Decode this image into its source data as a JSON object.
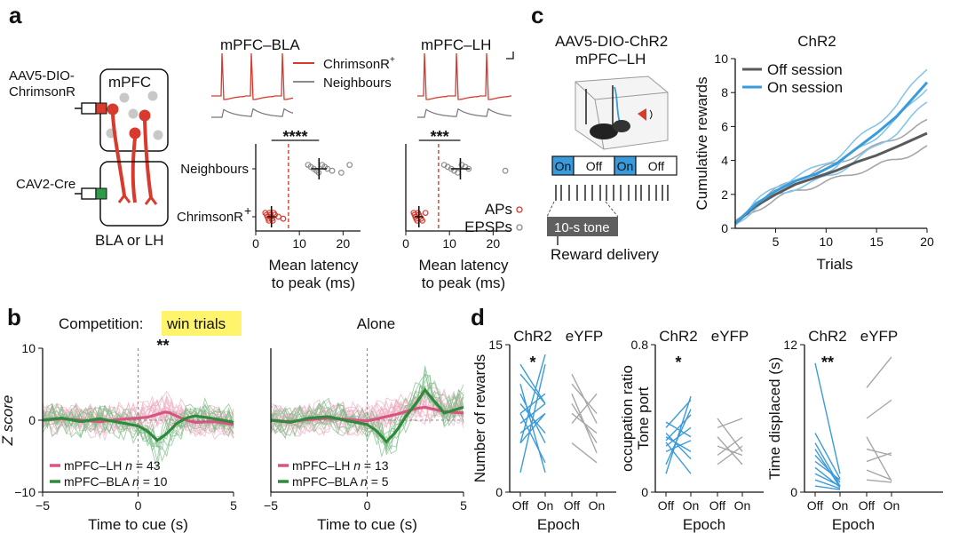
{
  "panel_letters": [
    "a",
    "b",
    "c",
    "d"
  ],
  "colors": {
    "red": "#d83a2e",
    "grey": "#8c8c8c",
    "pink": "#d9557f",
    "pink_light": "#eeb2c4",
    "green": "#2f8a3d",
    "green_light": "#7cbf88",
    "blue": "#3a9bdc",
    "blue_light": "#86c5ea",
    "dark_grey": "#5a5a5a",
    "light_grey": "#a6a6a6",
    "highlight": "#fff46b"
  },
  "panel_a": {
    "virus_label": [
      "AAV5-DIO-",
      "ChrimsonR"
    ],
    "cre_label": "CAV2-Cre",
    "mpfc_label": "mPFC",
    "target_label": "BLA or LH",
    "trace_titles": [
      "mPFC–BLA",
      "mPFC–LH"
    ],
    "trace_legend": [
      "ChrimsonR",
      "+",
      "Neighbours"
    ],
    "icon_names": [
      "syringe-icon",
      "neuron-icon"
    ]
  },
  "panel_c_left": {
    "title": [
      "AAV5-DIO-ChR2",
      "mPFC–LH"
    ],
    "epochs": [
      "On",
      "Off",
      "On",
      "Off"
    ],
    "tone_label": "10-s tone",
    "reward_label": "Reward delivery",
    "icon_names": [
      "behavior-box-icon",
      "speaker-icon",
      "mouse-icon"
    ]
  },
  "chart_data": [
    {
      "id": "a-latency-BLA",
      "type": "scatter",
      "categories": [
        "Neighbours",
        "ChrimsonR+"
      ],
      "cat_tick_labels": [
        "Neighbours",
        "ChrimsonR",
        "+"
      ],
      "xlabel": [
        "Mean latency",
        "to peak (ms)"
      ],
      "xticks": [
        0,
        10,
        20
      ],
      "xlim": [
        0,
        24
      ],
      "threshold": 7.5,
      "significance": "****",
      "series": [
        {
          "name": "ChrimsonR+",
          "values": [
            2.2,
            2.5,
            2.7,
            2.9,
            3.0,
            3.2,
            3.4,
            3.5,
            3.7,
            3.9,
            4.1,
            4.4,
            5.2,
            6.3
          ],
          "mean": 3.6,
          "sem": 1.0
        },
        {
          "name": "Neighbours",
          "values": [
            12.0,
            12.6,
            13.3,
            13.9,
            14.4,
            15.2,
            15.8,
            16.4,
            17.5,
            19.6,
            21.5
          ],
          "mean": 14.5,
          "sem": 1.8
        }
      ]
    },
    {
      "id": "a-latency-LH",
      "type": "scatter",
      "categories": [
        "Neighbours",
        "ChrimsonR+"
      ],
      "xlabel": [
        "Mean latency",
        "to peak (ms)"
      ],
      "xticks": [
        0,
        10,
        20
      ],
      "xlim": [
        0,
        24
      ],
      "threshold": 7.5,
      "significance": "***",
      "legend": [
        "APs",
        "EPSPs"
      ],
      "series": [
        {
          "name": "APs",
          "values": [
            1.8,
            2.0,
            2.2,
            2.4,
            2.6,
            2.8,
            3.0,
            3.2,
            3.5,
            3.8,
            4.5
          ],
          "mean": 3.0,
          "sem": 1.0
        },
        {
          "name": "EPSPs",
          "values": [
            8.8,
            9.6,
            10.4,
            11.1,
            11.9,
            12.8,
            13.6,
            14.4,
            22.8
          ],
          "mean": 12.5,
          "sem": 2.2
        }
      ]
    },
    {
      "id": "b-competition",
      "type": "line",
      "title": "Competition:",
      "title_highlight": "win trials",
      "significance": "**",
      "xlabel": "Time to cue (s)",
      "ylabel": "Z score",
      "xlim": [
        -5,
        5
      ],
      "ylim": [
        -10,
        10
      ],
      "xticks": [
        -5,
        0,
        5
      ],
      "yticks": [
        -10,
        0,
        10
      ],
      "legend": [
        {
          "name": "mPFC–LH",
          "n_label": "n",
          "n_value": "43"
        },
        {
          "name": "mPFC–BLA",
          "n_label": "n",
          "n_value": "10"
        }
      ],
      "series": [
        {
          "name": "mPFC–LH",
          "x": [
            -5,
            -4,
            -3,
            -2,
            -1,
            0,
            0.5,
            1,
            1.5,
            2,
            2.5,
            3,
            4,
            5
          ],
          "values": [
            0.0,
            0.2,
            0.0,
            -0.2,
            0.1,
            0.3,
            0.4,
            0.8,
            1.2,
            0.6,
            0.0,
            -0.3,
            -0.2,
            -0.6
          ]
        },
        {
          "name": "mPFC–BLA",
          "x": [
            -5,
            -4,
            -3,
            -2,
            -1,
            0,
            0.5,
            1,
            1.5,
            2,
            2.5,
            3,
            4,
            5
          ],
          "values": [
            0.0,
            0.3,
            -0.2,
            0.2,
            -0.3,
            -0.8,
            -1.5,
            -2.8,
            -1.9,
            -0.5,
            0.3,
            0.6,
            0.2,
            -0.3
          ]
        }
      ]
    },
    {
      "id": "b-alone",
      "type": "line",
      "title": "Alone",
      "xlabel": "Time to cue (s)",
      "xlim": [
        -5,
        5
      ],
      "ylim": [
        -10,
        10
      ],
      "xticks": [
        -5,
        0,
        5
      ],
      "legend": [
        {
          "name": "mPFC–LH",
          "n_label": "n",
          "n_value": "13"
        },
        {
          "name": "mPFC–BLA",
          "n_label": "n",
          "n_value": "5"
        }
      ],
      "series": [
        {
          "name": "mPFC–LH",
          "x": [
            -5,
            -4,
            -3,
            -2,
            -1,
            0,
            0.5,
            1,
            1.5,
            2,
            2.5,
            3,
            4,
            5
          ],
          "values": [
            0.0,
            -0.2,
            0.1,
            0.3,
            0.1,
            -0.1,
            0.2,
            0.5,
            0.8,
            1.2,
            1.6,
            1.8,
            1.2,
            1.0
          ]
        },
        {
          "name": "mPFC–BLA",
          "x": [
            -5,
            -4,
            -3,
            -2,
            -1,
            0,
            0.5,
            1,
            1.5,
            2,
            2.5,
            3,
            4,
            5
          ],
          "values": [
            0.0,
            -0.3,
            0.3,
            0.5,
            -0.1,
            -0.6,
            -1.5,
            -3.0,
            -1.6,
            0.5,
            2.2,
            4.2,
            1.0,
            1.8
          ]
        }
      ]
    },
    {
      "id": "c-cumulative",
      "type": "line",
      "title": "ChR2",
      "xlabel": "Trials",
      "ylabel": "Cumulative rewards",
      "xlim": [
        1,
        20
      ],
      "ylim": [
        0,
        10
      ],
      "xticks": [
        5,
        10,
        15,
        20
      ],
      "yticks": [
        0,
        2,
        4,
        6,
        8,
        10
      ],
      "legend": [
        "Off session",
        "On session"
      ],
      "series": [
        {
          "name": "Off session",
          "x": [
            1,
            3,
            5,
            7,
            9,
            11,
            13,
            15,
            17,
            20
          ],
          "values": [
            0.3,
            1.3,
            2.0,
            2.6,
            3.0,
            3.4,
            3.9,
            4.3,
            4.8,
            5.6
          ]
        },
        {
          "name": "On session",
          "x": [
            1,
            3,
            5,
            7,
            9,
            11,
            13,
            15,
            17,
            20
          ],
          "values": [
            0.3,
            1.4,
            2.2,
            2.8,
            3.2,
            3.8,
            4.7,
            5.6,
            6.6,
            8.6
          ]
        }
      ]
    },
    {
      "id": "d-rewards",
      "type": "line",
      "ylabel": "Number of rewards",
      "xlabel": "Epoch",
      "ylim": [
        0,
        15
      ],
      "yticks": [
        0,
        15
      ],
      "groups": [
        "ChR2",
        "eYFP"
      ],
      "categories": [
        "Off",
        "On"
      ],
      "significance": "*",
      "series": [
        {
          "name": "ChR2",
          "pairs": [
            [
              2,
              13
            ],
            [
              5,
              8
            ],
            [
              5,
              14
            ],
            [
              6,
              8
            ],
            [
              7,
              9
            ],
            [
              8,
              10
            ],
            [
              8,
              3
            ],
            [
              9,
              6
            ],
            [
              10,
              5
            ],
            [
              11,
              2
            ],
            [
              12,
              9
            ],
            [
              13,
              9
            ]
          ]
        },
        {
          "name": "eYFP",
          "pairs": [
            [
              5,
              3
            ],
            [
              7,
              10
            ],
            [
              8,
              6
            ],
            [
              9,
              5
            ],
            [
              10,
              4
            ],
            [
              11,
              8
            ],
            [
              12,
              7
            ]
          ]
        }
      ]
    },
    {
      "id": "d-occupancy",
      "type": "line",
      "ylabel": [
        "Tone port",
        "occupation ratio"
      ],
      "xlabel": "Epoch",
      "ylim": [
        0,
        0.8
      ],
      "yticks": [
        0,
        0.8
      ],
      "groups": [
        "ChR2",
        "eYFP"
      ],
      "categories": [
        "Off",
        "On"
      ],
      "significance": "*",
      "series": [
        {
          "name": "ChR2",
          "pairs": [
            [
              0.1,
              0.52
            ],
            [
              0.15,
              0.45
            ],
            [
              0.22,
              0.28
            ],
            [
              0.25,
              0.35
            ],
            [
              0.27,
              0.1
            ],
            [
              0.28,
              0.42
            ],
            [
              0.3,
              0.22
            ],
            [
              0.32,
              0.18
            ],
            [
              0.35,
              0.5
            ],
            [
              0.38,
              0.3
            ]
          ]
        },
        {
          "name": "eYFP",
          "pairs": [
            [
              0.15,
              0.25
            ],
            [
              0.2,
              0.3
            ],
            [
              0.25,
              0.2
            ],
            [
              0.3,
              0.15
            ],
            [
              0.35,
              0.4
            ],
            [
              0.4,
              0.22
            ]
          ]
        }
      ]
    },
    {
      "id": "d-displaced",
      "type": "line",
      "ylabel": "Time displaced (s)",
      "xlabel": "Epoch",
      "ylim": [
        0,
        12
      ],
      "yticks": [
        0,
        12
      ],
      "groups": [
        "ChR2",
        "eYFP"
      ],
      "categories": [
        "Off",
        "On"
      ],
      "significance": "**",
      "series": [
        {
          "name": "ChR2",
          "pairs": [
            [
              0.5,
              0.2
            ],
            [
              1.0,
              0.3
            ],
            [
              1.5,
              0.5
            ],
            [
              2.0,
              0.4
            ],
            [
              2.5,
              1.0
            ],
            [
              3.0,
              0.8
            ],
            [
              3.5,
              0.4
            ],
            [
              4.0,
              0.5
            ],
            [
              4.8,
              1.1
            ],
            [
              10.5,
              1.5
            ]
          ]
        },
        {
          "name": "eYFP",
          "pairs": [
            [
              1.0,
              0.8
            ],
            [
              1.8,
              1.0
            ],
            [
              2.5,
              3.2
            ],
            [
              3.5,
              3.0
            ],
            [
              4.5,
              0.9
            ],
            [
              6.0,
              7.5
            ],
            [
              8.5,
              11.0
            ]
          ]
        }
      ]
    }
  ]
}
